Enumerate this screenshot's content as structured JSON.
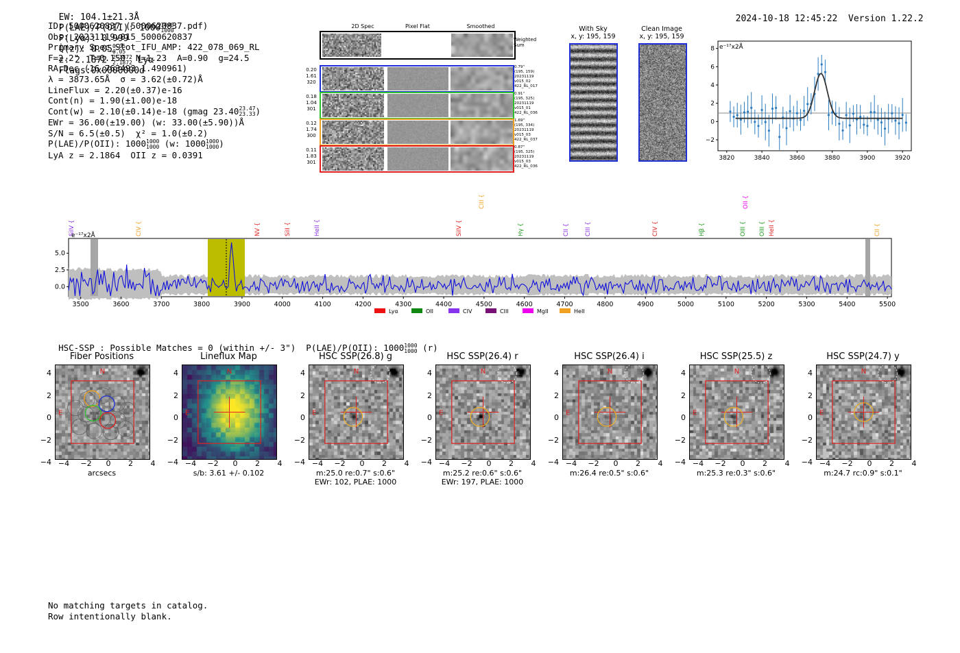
{
  "header": {
    "ew": "EW: 104.1±21.3Å",
    "plae_label": "P(LAE)/P(OII): 1000",
    "plae_hi": "1000",
    "plae_lo": "1000",
    "plya": "P(Lyα): 0.999",
    "qz_label": "Q(z): 0.05",
    "qz_hi": "0.05",
    "qz_lo": "0.05",
    "z_label": "z: 2.1872",
    "z_hi": "2.1872",
    "z_lo": "2.1872",
    "line": "Lyα",
    "flags": "Flags:0x0000000d",
    "datetime": "2024-10-18 12:45:22",
    "version": "Version 1.22.2"
  },
  "info": {
    "id": "ID: 5000620837 (5000620837.pdf)",
    "obs": "Obs: 20231119v015_5000620837",
    "primary": "Primary Spec_Slot_IFU_AMP: 422_078_069_RL",
    "params": "F=2.2\"  T=0.150  N=1.23  A=0.90  g=24.5",
    "radec": "RA,Dec (16.763493,1.490961)",
    "lambda": "λ = 3873.65Å  σ = 3.62(±0.72)Å",
    "lineflux": "LineFlux = 2.20(±0.37)e-16",
    "contn": "Cont(n) = 1.90(±1.00)e-18",
    "contw": "Cont(w) = 2.10(±0.14)e-18 (gmag 23.40",
    "gmag_hi": "23.47",
    "gmag_lo": "23.33",
    "ewr": "EWr = 36.00(±19.00) (w: 33.00(±5.90))Å",
    "sn": "S/N = 6.5(±0.5)  χ² = 1.0(±0.2)",
    "plae": "P(LAE)/P(OII): 1000",
    "plae_hi": "1000",
    "plae_lo": "1000",
    "plae_w": "(w: 1000",
    "plae_w_hi": "1000",
    "plae_w_lo": "1000",
    "lya_z": "LyA z = 2.1864  OII z = 0.0391"
  },
  "cutouts": {
    "col_labels": [
      "2D Spec",
      "Pixel Flat",
      "Smoothed"
    ],
    "weighted_sum": "Weighted\nSum",
    "rows": [
      {
        "left": [
          "0.20",
          "1.61",
          "320"
        ],
        "right": [
          "0.79\"",
          "(195, 159)",
          "20231119",
          "v015_02",
          "422_RL_017"
        ],
        "color": "#1f2fd8"
      },
      {
        "left": [
          "0.18",
          "1.04",
          "301"
        ],
        "right": [
          "0.91\"",
          "(195, 325)",
          "20231119",
          "v015_01",
          "422_RL_036"
        ],
        "color": "#2fc02f"
      },
      {
        "left": [
          "0.12",
          "1.74",
          "300"
        ],
        "right": [
          "1.69\"",
          "(195, 334)",
          "20231119",
          "v015_03",
          "422_RL_037"
        ],
        "color": "#f0a020"
      },
      {
        "left": [
          "0.11",
          "1.83",
          "301"
        ],
        "right": [
          "0.87\"",
          "(195, 325)",
          "20231119",
          "v015_03",
          "422_RL_036"
        ],
        "color": "#e02020"
      }
    ]
  },
  "sky": {
    "with_sky_title": "With Sky",
    "with_sky_xy": "x, y: 195, 159",
    "clean_title": "Clean Image",
    "clean_xy": "x, y: 195, 159"
  },
  "zoom_plot": {
    "unit": "e⁻¹⁷x2Å",
    "xticks": [
      "3820",
      "3840",
      "3860",
      "3880",
      "3900",
      "3920"
    ],
    "yticks": [
      "8",
      "6",
      "4",
      "2",
      "0",
      "−2"
    ]
  },
  "full_spectrum": {
    "unit": "e⁻¹⁷x2Å",
    "yticks": [
      "5.0",
      "2.5",
      "0.0"
    ],
    "xticks": [
      "3500",
      "3600",
      "3700",
      "3800",
      "3900",
      "4000",
      "4100",
      "4200",
      "4300",
      "4400",
      "4500",
      "4600",
      "4700",
      "4800",
      "4900",
      "5000",
      "5100",
      "5200",
      "5300",
      "5400",
      "5500"
    ],
    "lines": [
      {
        "label": "SiIV",
        "color": "#8a2be2"
      },
      {
        "label": "CIV",
        "color": "#f0a020"
      },
      {
        "label": "NV",
        "color": "#e02020"
      },
      {
        "label": "SiII",
        "color": "#e02020"
      },
      {
        "label": "HeII",
        "color": "#8a2be2"
      },
      {
        "label": "SiIV",
        "color": "#e02020"
      },
      {
        "label": "CIII",
        "color": "#f0a020"
      },
      {
        "label": "Hγ",
        "color": "#1a9a1a"
      },
      {
        "label": "CII",
        "color": "#8a2be2"
      },
      {
        "label": "CIII",
        "color": "#8a2be2"
      },
      {
        "label": "CIV",
        "color": "#e02020"
      },
      {
        "label": "Hβ",
        "color": "#1a9a1a"
      },
      {
        "label": "OIII",
        "color": "#1a9a1a"
      },
      {
        "label": "OII",
        "color": "#ee00ee"
      },
      {
        "label": "OIII",
        "color": "#1a9a1a"
      },
      {
        "label": "HeII",
        "color": "#e02020"
      },
      {
        "label": "CII",
        "color": "#f0a020"
      }
    ],
    "legend": [
      {
        "label": "Lyα",
        "color": "#ee1111"
      },
      {
        "label": "OII",
        "color": "#118811"
      },
      {
        "label": "CIV",
        "color": "#8833ee"
      },
      {
        "label": "CIII",
        "color": "#771177"
      },
      {
        "label": "MgII",
        "color": "#ee00ee"
      },
      {
        "label": "HeII",
        "color": "#f0a020"
      }
    ]
  },
  "hsc": {
    "summary": "HSC-SSP : Possible Matches = 0 (within +/- 3\")  P(LAE)/P(OII): 1000",
    "summary_hi": "1000",
    "summary_lo": "1000",
    "summary_suffix": "(r)",
    "ticks": [
      "−4",
      "−2",
      "0",
      "2",
      "4"
    ],
    "yticks": [
      "4",
      "2",
      "0",
      "−2",
      "−4"
    ],
    "panels": [
      {
        "title": "Fiber Positions",
        "cap1": "arcsecs",
        "cap2": ""
      },
      {
        "title": "Lineflux Map",
        "cap1": "s/b: 3.61 +/- 0.102",
        "cap2": ""
      },
      {
        "title": "HSC SSP(26.8) g",
        "cap1": "m:25.0  re:0.7\"  s:0.6\"",
        "cap2": "EWr: 102, PLAE: 1000"
      },
      {
        "title": "HSC SSP(26.4) r",
        "cap1": "m:25.2  re:0.6\"  s:0.6\"",
        "cap2": "EWr: 197, PLAE: 1000"
      },
      {
        "title": "HSC SSP(26.4) i",
        "cap1": "m:26.4  re:0.5\"  s:0.6\"",
        "cap2": ""
      },
      {
        "title": "HSC SSP(25.5) z",
        "cap1": "m:25.3  re:0.3\"  s:0.6\"",
        "cap2": ""
      },
      {
        "title": "HSC SSP(24.7) y",
        "cap1": "m:24.7  rc:0.9\"  s:0.1\"",
        "cap2": ""
      }
    ],
    "n_label": "N",
    "e_label": "E"
  },
  "footer": {
    "line1": "No matching targets in catalog.",
    "line2": "Row intentionally blank."
  }
}
